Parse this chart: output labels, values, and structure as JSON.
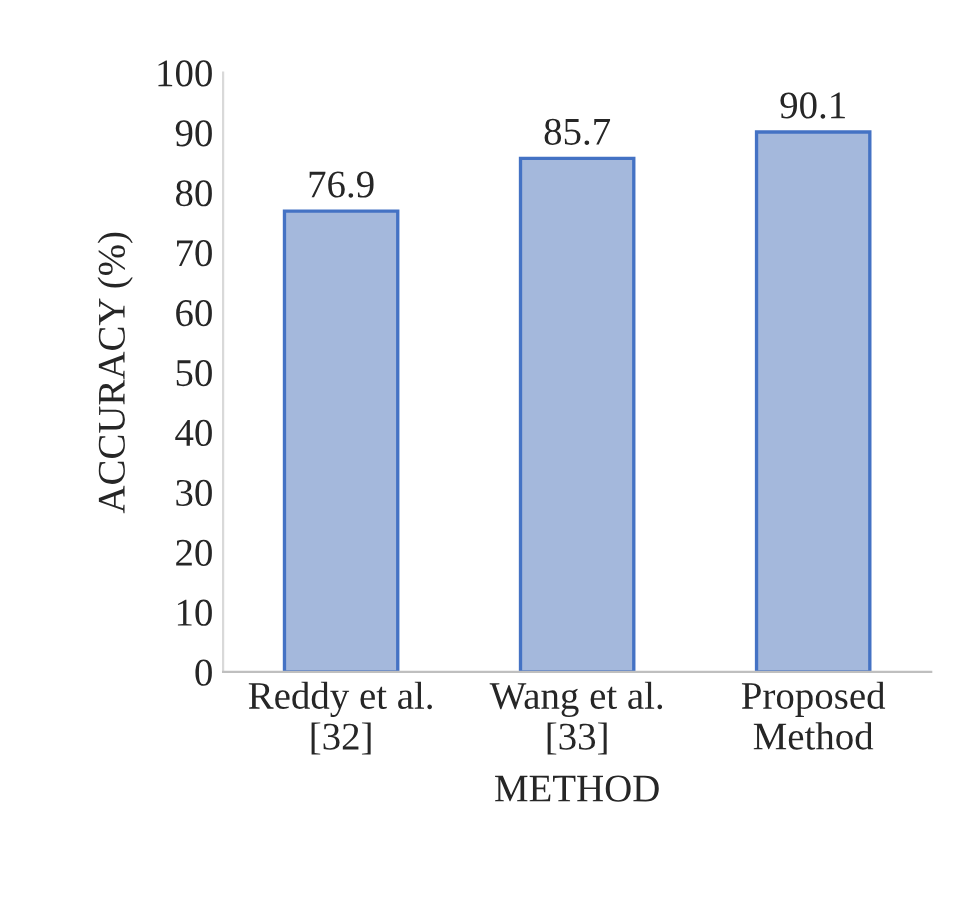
{
  "chart_data": {
    "type": "bar",
    "xlabel": "METHOD",
    "ylabel": "ACCURACY (%)",
    "categories": [
      "Reddy et al.\n[32]",
      "Wang et al.\n[33]",
      "Proposed\nMethod"
    ],
    "values": [
      76.9,
      85.7,
      90.1
    ],
    "color": "#a4b8dc",
    "ylim": [
      0,
      100
    ],
    "yticks": [
      0,
      10,
      20,
      30,
      40,
      50,
      60,
      70,
      80,
      90,
      100
    ],
    "grid": false,
    "data_labels": true
  }
}
